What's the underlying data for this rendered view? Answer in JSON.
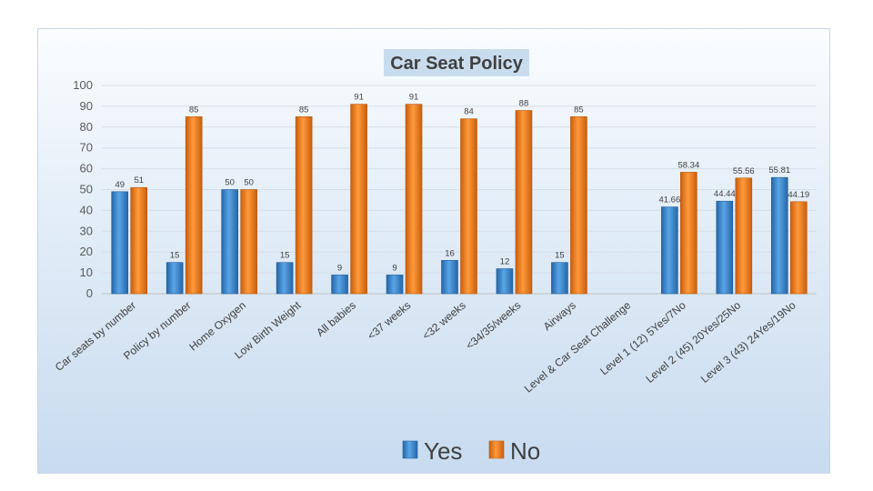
{
  "chart_data": {
    "type": "bar",
    "title": "Car Seat Policy",
    "xlabel": "",
    "ylabel": "",
    "ylim": [
      0,
      100
    ],
    "yticks": [
      0,
      10,
      20,
      30,
      40,
      50,
      60,
      70,
      80,
      90,
      100
    ],
    "categories": [
      "Car seats by number",
      "Policy by number",
      "Home Oxygen",
      "Low Birth Weight",
      "All babies",
      "<37 weeks",
      "<32 weeks",
      "<34/35/weeks",
      "Airways",
      "Level & Car Seat Challenge",
      "Level 1 (12) 5Yes/7No",
      "Level 2 (45) 20Yes/25No",
      "Level 3 (43) 24Yes/19No"
    ],
    "series": [
      {
        "name": "Yes",
        "color": "#3a87cc",
        "values": [
          49,
          15,
          50,
          15,
          9,
          9,
          16,
          12,
          15,
          null,
          41.66,
          44.44,
          55.81
        ],
        "labels": [
          "49",
          "15",
          "50",
          "15",
          "9",
          "9",
          "16",
          "12",
          "15",
          "",
          "41.66",
          "44.44",
          "55.81"
        ]
      },
      {
        "name": "No",
        "color": "#f07d1f",
        "values": [
          51,
          85,
          50,
          85,
          91,
          91,
          84,
          88,
          85,
          null,
          58.34,
          55.56,
          44.19
        ],
        "labels": [
          "51",
          "85",
          "50",
          "85",
          "91",
          "91",
          "84",
          "88",
          "85",
          "",
          "58.34",
          "55.56",
          "44.19"
        ]
      }
    ],
    "legend": {
      "position": "bottom",
      "entries": [
        "Yes",
        "No"
      ]
    },
    "grid": true
  }
}
